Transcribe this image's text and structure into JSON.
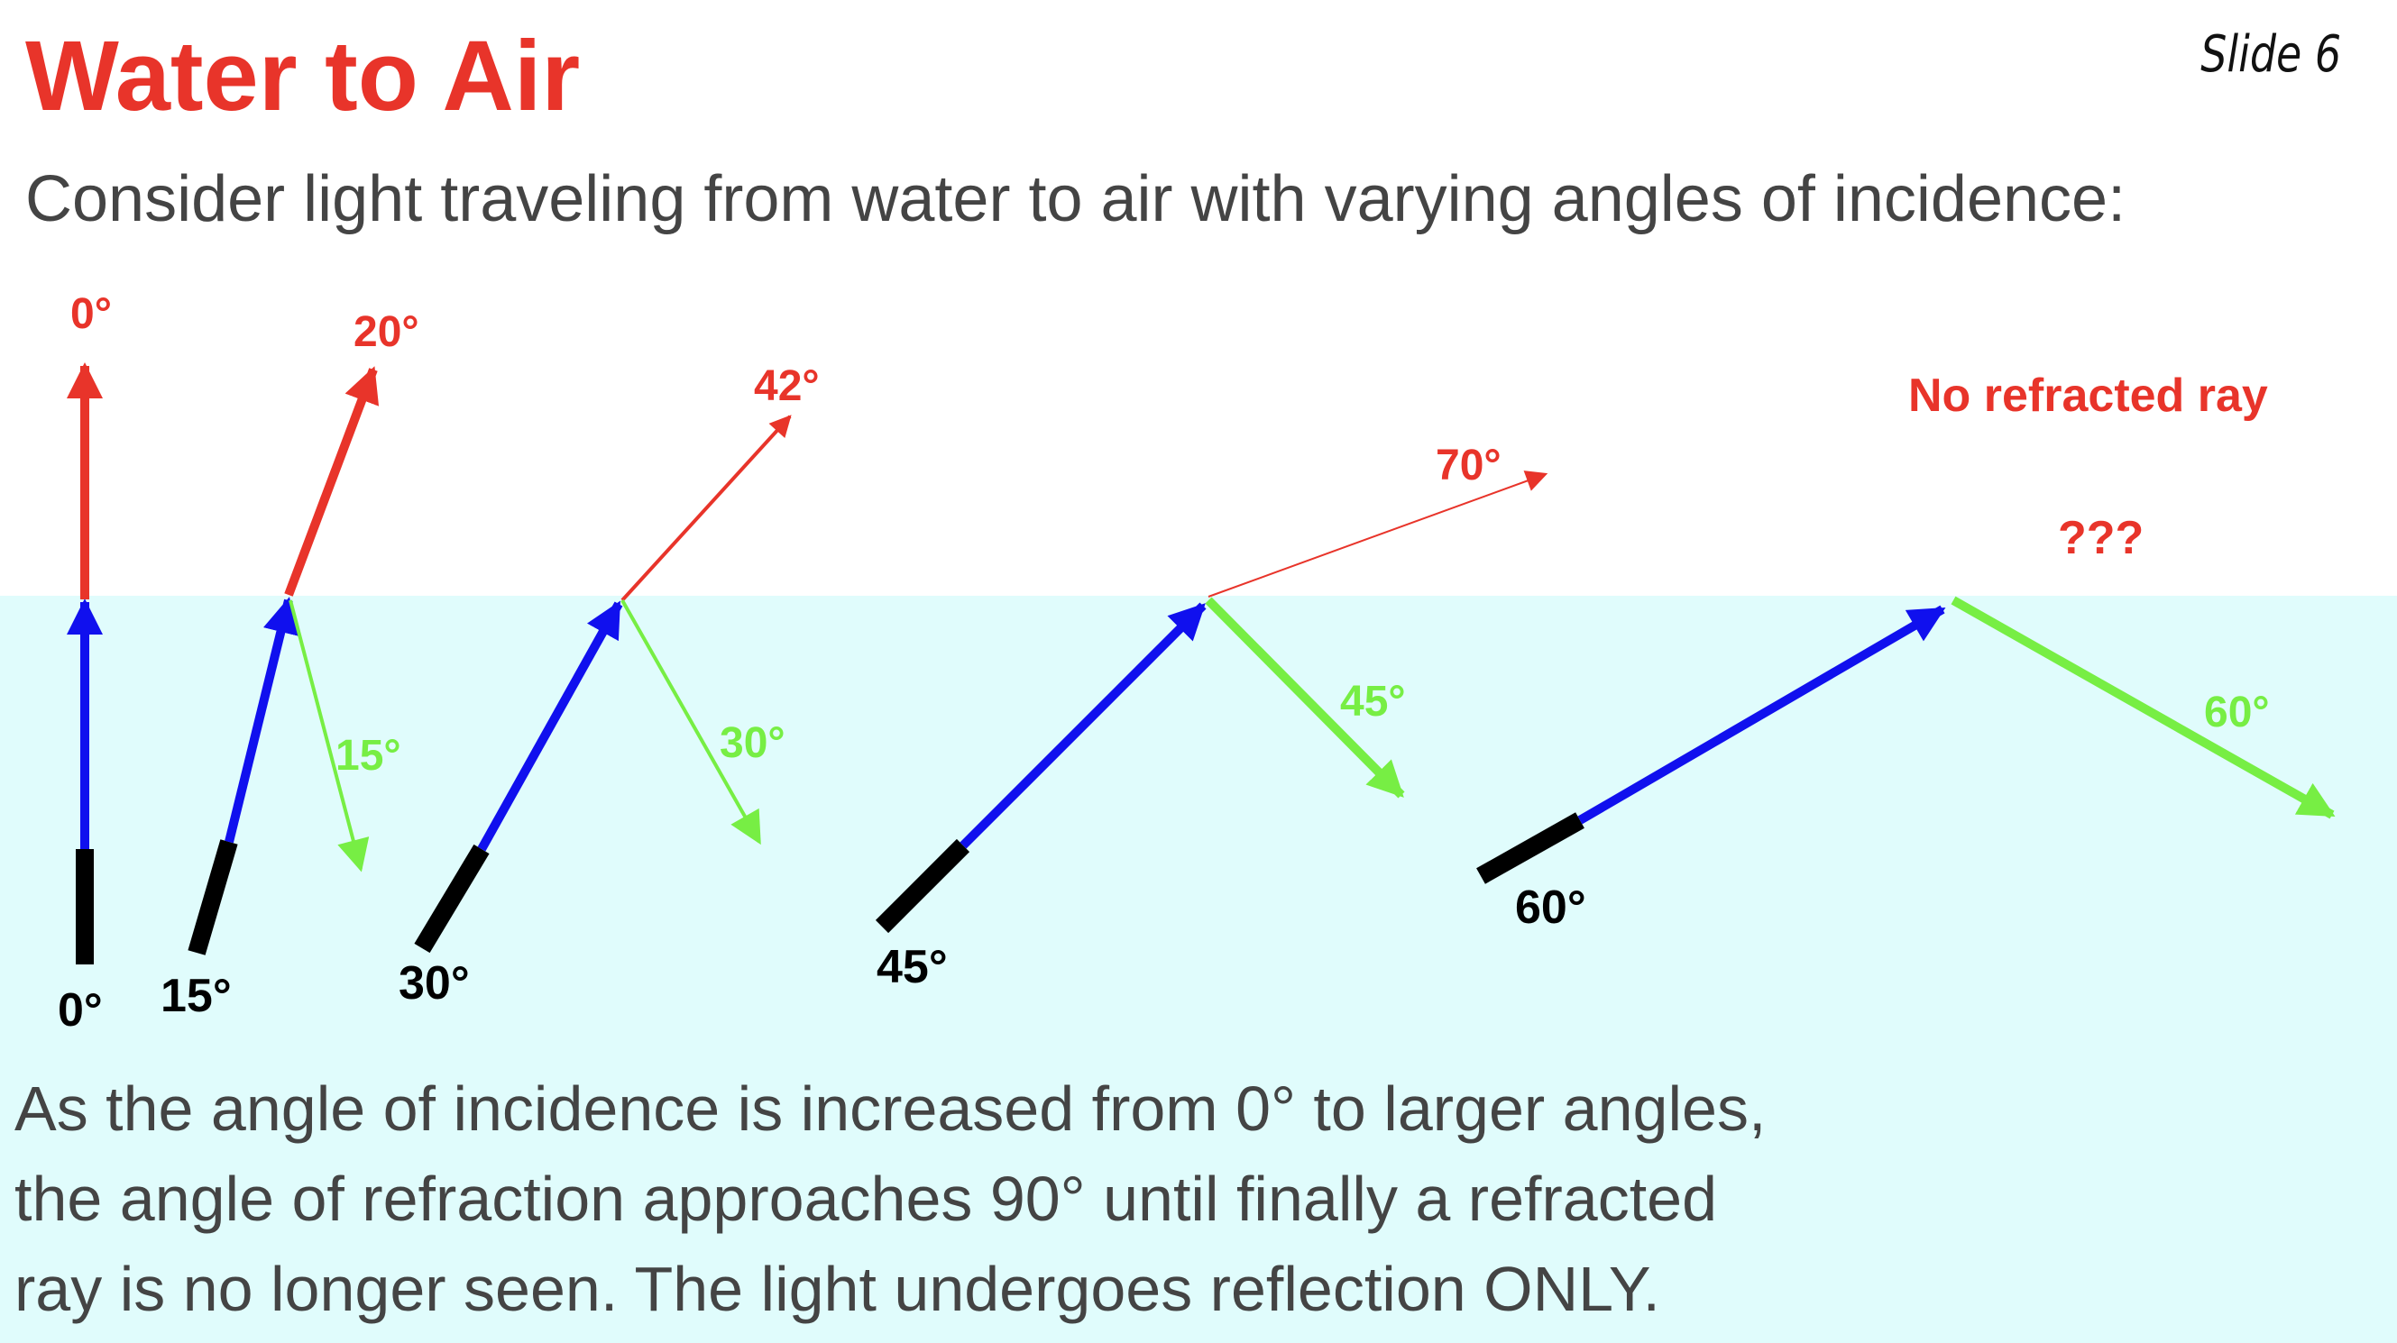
{
  "slide": {
    "title": "Water to Air",
    "number_label": "Slide 6",
    "intro": "Consider light traveling from water to air with varying angles of incidence:",
    "summary_lines": [
      "As the angle of incidence is increased from 0° to larger angles,",
      "the angle of refraction approaches 90° until finally a refracted",
      "ray is no longer seen. The light undergoes reflection ONLY."
    ]
  },
  "colors": {
    "title": "#e8342a",
    "body_text": "#444444",
    "water": "#e0fcfc",
    "incident_ray": "#1010ee",
    "refracted_ray": "#e8342a",
    "reflected_ray": "#77ee44",
    "light_source": "#000000"
  },
  "diagram": {
    "cases": [
      {
        "incidence_label": "0°",
        "refraction_label": "0°",
        "reflection_label": ""
      },
      {
        "incidence_label": "15°",
        "refraction_label": "20°",
        "reflection_label": "15°"
      },
      {
        "incidence_label": "30°",
        "refraction_label": "42°",
        "reflection_label": "30°"
      },
      {
        "incidence_label": "45°",
        "refraction_label": "70°",
        "reflection_label": "45°"
      },
      {
        "incidence_label": "60°",
        "refraction_label": "???",
        "reflection_label": "60°",
        "note": "No refracted ray"
      }
    ]
  }
}
